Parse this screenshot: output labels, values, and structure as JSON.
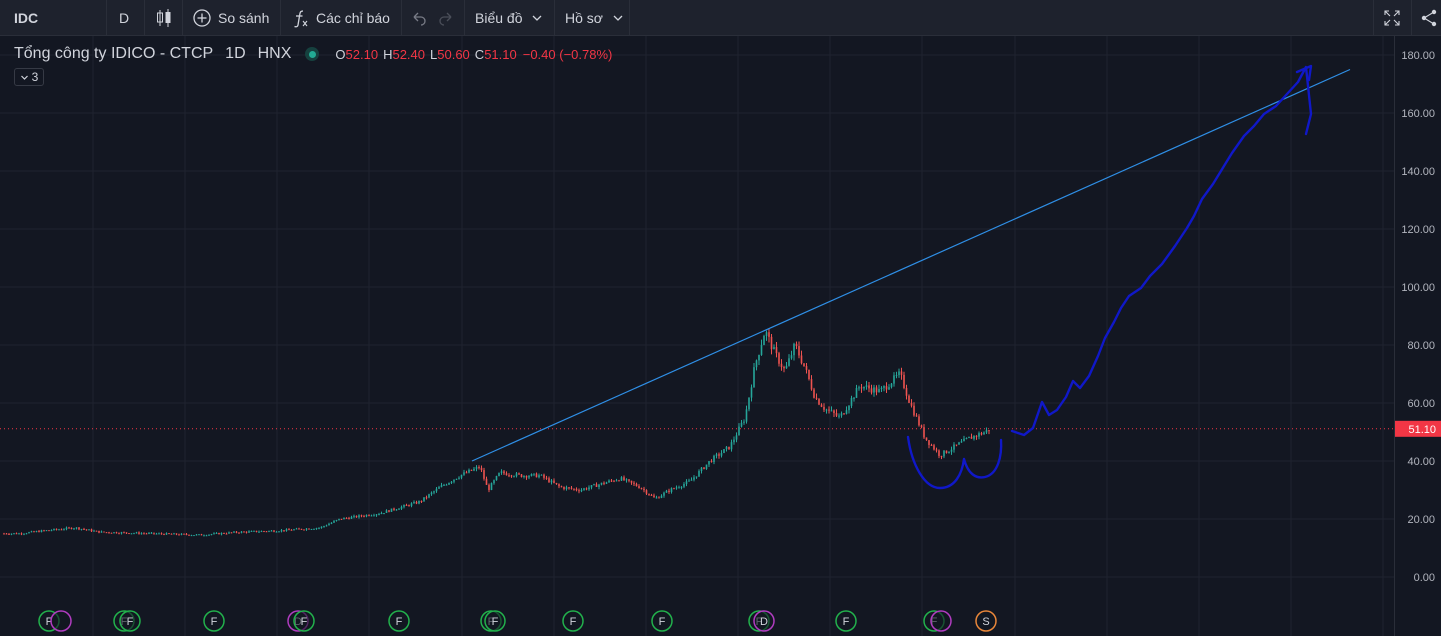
{
  "toolbar": {
    "symbol": "IDC",
    "interval": "D",
    "compare_label": "So sánh",
    "indicators_label": "Các chỉ báo",
    "chart_label": "Biểu đồ",
    "profile_label": "Hồ sơ"
  },
  "legend": {
    "name": "Tổng công ty IDICO - CTCP",
    "interval": "1D",
    "exchange": "HNX",
    "o_label": "O",
    "o_value": "52.10",
    "h_label": "H",
    "h_value": "52.40",
    "l_label": "L",
    "l_value": "50.60",
    "c_label": "C",
    "c_value": "51.10",
    "change": "−0.40 (−0.78%)",
    "collapse_count": "3"
  },
  "colors": {
    "background": "#131722",
    "up": "#26a69a",
    "down": "#ef5350",
    "trendline": "#2f8fe6",
    "drawing": "#1018c8",
    "price_line": "#f23645",
    "event_green": "#22b14c",
    "event_purple": "#b03cc0",
    "event_orange": "#e8863a"
  },
  "chart_data": {
    "type": "candlestick",
    "symbol": "IDC",
    "last_price": 51.1,
    "last_price_label": "51.10",
    "y_axis": {
      "range": [
        -9,
        184
      ],
      "ticks": [
        "180.00",
        "160.00",
        "140.00",
        "120.00",
        "100.00",
        "80.00",
        "60.00",
        "40.00",
        "20.00",
        "0.00"
      ]
    },
    "grid": true,
    "price_anchors": [
      [
        0,
        15
      ],
      [
        20,
        15
      ],
      [
        45,
        16
      ],
      [
        75,
        17
      ],
      [
        100,
        15.5
      ],
      [
        150,
        15
      ],
      [
        200,
        14.5
      ],
      [
        240,
        15.5
      ],
      [
        280,
        16
      ],
      [
        320,
        17
      ],
      [
        340,
        20
      ],
      [
        380,
        22
      ],
      [
        420,
        26
      ],
      [
        440,
        31
      ],
      [
        460,
        35
      ],
      [
        480,
        38
      ],
      [
        488,
        30
      ],
      [
        500,
        36
      ],
      [
        520,
        35
      ],
      [
        540,
        35
      ],
      [
        560,
        31
      ],
      [
        580,
        30
      ],
      [
        600,
        32
      ],
      [
        620,
        34
      ],
      [
        640,
        31
      ],
      [
        655,
        27
      ],
      [
        670,
        30
      ],
      [
        690,
        33
      ],
      [
        710,
        40
      ],
      [
        730,
        45
      ],
      [
        745,
        55
      ],
      [
        755,
        73
      ],
      [
        765,
        85
      ],
      [
        775,
        77
      ],
      [
        785,
        71
      ],
      [
        795,
        80
      ],
      [
        805,
        72
      ],
      [
        815,
        62
      ],
      [
        825,
        58
      ],
      [
        840,
        55
      ],
      [
        860,
        66
      ],
      [
        880,
        64
      ],
      [
        900,
        70
      ],
      [
        910,
        60
      ],
      [
        925,
        48
      ],
      [
        940,
        42
      ],
      [
        955,
        45
      ],
      [
        970,
        48
      ],
      [
        985,
        50
      ],
      [
        990,
        51
      ]
    ],
    "trendline": {
      "from": [
        472,
        40
      ],
      "to": [
        1350,
        175
      ]
    },
    "events": [
      {
        "label": "F",
        "type": "dividend"
      },
      {
        "label": "",
        "type": "split"
      },
      {
        "label": "F",
        "type": "dividend"
      },
      {
        "label": "F",
        "type": "dividend"
      },
      {
        "label": "F",
        "type": "dividend"
      },
      {
        "label": "D",
        "type": "split"
      },
      {
        "label": "F",
        "type": "dividend"
      },
      {
        "label": "F",
        "type": "dividend"
      },
      {
        "label": "F",
        "type": "dividend"
      },
      {
        "label": "F",
        "type": "dividend"
      },
      {
        "label": "F",
        "type": "dividend"
      },
      {
        "label": "F",
        "type": "dividend"
      },
      {
        "label": "F",
        "type": "dividend"
      },
      {
        "label": "D",
        "type": "split"
      },
      {
        "label": "F",
        "type": "dividend"
      },
      {
        "label": "F",
        "type": "dividend"
      },
      {
        "label": "",
        "type": "split"
      },
      {
        "label": "S",
        "type": "split"
      }
    ]
  }
}
